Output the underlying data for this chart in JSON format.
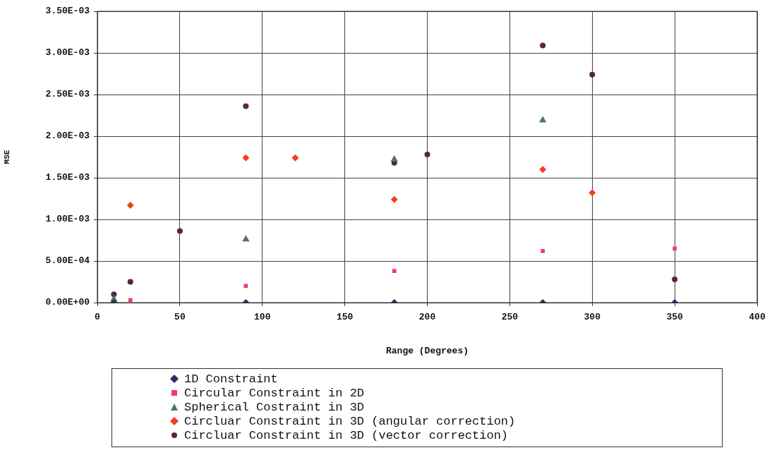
{
  "chart_data": {
    "type": "scatter",
    "xlabel": "Range (Degrees)",
    "ylabel": "MSE",
    "xlim": [
      0,
      400
    ],
    "xticks": [
      0,
      50,
      100,
      150,
      200,
      250,
      300,
      350,
      400
    ],
    "ylim": [
      0,
      0.0035
    ],
    "yticks": [
      {
        "value": 0,
        "label": "0.00E+00"
      },
      {
        "value": 0.0005,
        "label": "5.00E-04"
      },
      {
        "value": 0.001,
        "label": "1.00E-03"
      },
      {
        "value": 0.0015,
        "label": "1.50E-03"
      },
      {
        "value": 0.002,
        "label": "2.00E-03"
      },
      {
        "value": 0.0025,
        "label": "2.50E-03"
      },
      {
        "value": 0.003,
        "label": "3.00E-03"
      },
      {
        "value": 0.0035,
        "label": "3.50E-03"
      }
    ],
    "grid": true,
    "legend": "bottom",
    "series": [
      {
        "name": "1D Constraint",
        "color": "#2b2b6b",
        "marker": "diamond",
        "x": [
          10,
          90,
          180,
          270,
          350
        ],
        "values": [
          0,
          0,
          0,
          0,
          0
        ]
      },
      {
        "name": "Circular Constraint in 2D",
        "color": "#ec3a78",
        "marker": "square",
        "x": [
          20,
          90,
          180,
          270,
          350
        ],
        "values": [
          3e-05,
          0.0002,
          0.00038,
          0.00062,
          0.00065
        ]
      },
      {
        "name": "Spherical Costraint in 3D",
        "color": "#4e7a52",
        "marker": "triangle",
        "x": [
          10,
          90,
          180,
          270
        ],
        "values": [
          4e-05,
          0.00076,
          0.00172,
          0.00219
        ]
      },
      {
        "name": "Circluar Constraint in 3D (angular correction)",
        "color": "#f0401e",
        "marker": "diamond",
        "x": [
          20,
          90,
          120,
          180,
          270,
          300
        ],
        "values": [
          0.00117,
          0.00174,
          0.00174,
          0.00124,
          0.0016,
          0.00132
        ]
      },
      {
        "name": "Circluar Constraint in 3D (vector correction)",
        "color": "#5a2248",
        "marker": "circle",
        "x": [
          10,
          20,
          50,
          90,
          180,
          200,
          270,
          300,
          350
        ],
        "values": [
          0.0001,
          0.00025,
          0.00086,
          0.00236,
          0.00168,
          0.00178,
          0.00309,
          0.00274,
          0.00028
        ]
      }
    ]
  }
}
